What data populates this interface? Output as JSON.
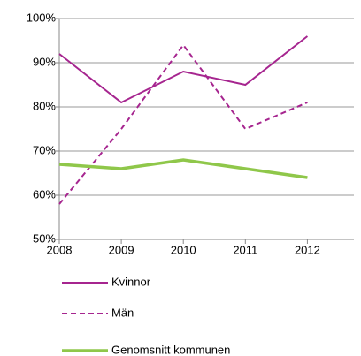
{
  "chart_data": {
    "type": "line",
    "x": [
      2008,
      2009,
      2010,
      2011,
      2012
    ],
    "xlim": [
      2008,
      2012.75
    ],
    "xticks": [
      2008,
      2009,
      2010,
      2011,
      2012
    ],
    "ylim": [
      50,
      100
    ],
    "yticks": [
      {
        "value": 50,
        "label": "50%"
      },
      {
        "value": 60,
        "label": "60%"
      },
      {
        "value": 70,
        "label": "70%"
      },
      {
        "value": 80,
        "label": "80%"
      },
      {
        "value": 90,
        "label": "90%"
      },
      {
        "value": 100,
        "label": "100%"
      }
    ],
    "grid": true,
    "legend": "bottom",
    "series": [
      {
        "name": "Kvinnor",
        "color": "#a6258f",
        "dash": false,
        "line_width": 2,
        "values": [
          92,
          81,
          88,
          85,
          96
        ]
      },
      {
        "name": "Män",
        "color": "#a6258f",
        "dash": true,
        "line_width": 2,
        "values": [
          58,
          75,
          94,
          75,
          81
        ]
      },
      {
        "name": "Genomsnitt kommunen",
        "color": "#8fc74a",
        "dash": false,
        "line_width": 3.5,
        "values": [
          67,
          66,
          68,
          66,
          64
        ]
      }
    ]
  }
}
